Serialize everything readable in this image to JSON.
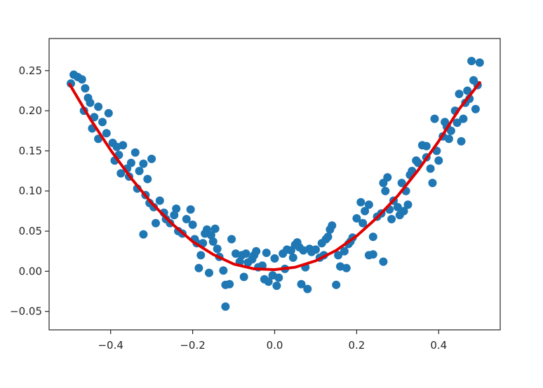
{
  "chart_data": {
    "type": "scatter",
    "title": "",
    "xlabel": "",
    "ylabel": "",
    "xlim": [
      -0.55,
      0.55
    ],
    "ylim": [
      -0.073,
      0.29
    ],
    "grid": false,
    "x_ticks": [
      -0.4,
      -0.2,
      0.0,
      0.2,
      0.4
    ],
    "x_tick_labels": [
      "−0.4",
      "−0.2",
      "0.0",
      "0.2",
      "0.4"
    ],
    "y_ticks": [
      -0.05,
      0.0,
      0.05,
      0.1,
      0.15,
      0.2,
      0.25
    ],
    "y_tick_labels": [
      "−0.05",
      "0.00",
      "0.05",
      "0.10",
      "0.15",
      "0.20",
      "0.25"
    ],
    "series": [
      {
        "type": "scatter",
        "color": "#1f77b4",
        "points": [
          [
            -0.497,
            0.234
          ],
          [
            -0.49,
            0.245
          ],
          [
            -0.48,
            0.242
          ],
          [
            -0.47,
            0.239
          ],
          [
            -0.462,
            0.228
          ],
          [
            -0.455,
            0.216
          ],
          [
            -0.45,
            0.21
          ],
          [
            -0.465,
            0.2
          ],
          [
            -0.44,
            0.192
          ],
          [
            -0.445,
            0.178
          ],
          [
            -0.43,
            0.205
          ],
          [
            -0.42,
            0.186
          ],
          [
            -0.405,
            0.197
          ],
          [
            -0.43,
            0.165
          ],
          [
            -0.41,
            0.172
          ],
          [
            -0.395,
            0.16
          ],
          [
            -0.385,
            0.155
          ],
          [
            -0.39,
            0.138
          ],
          [
            -0.38,
            0.145
          ],
          [
            -0.37,
            0.157
          ],
          [
            -0.375,
            0.122
          ],
          [
            -0.36,
            0.128
          ],
          [
            -0.355,
            0.118
          ],
          [
            -0.35,
            0.135
          ],
          [
            -0.34,
            0.148
          ],
          [
            -0.33,
            0.125
          ],
          [
            -0.335,
            0.103
          ],
          [
            -0.32,
            0.134
          ],
          [
            -0.31,
            0.115
          ],
          [
            -0.3,
            0.14
          ],
          [
            -0.315,
            0.095
          ],
          [
            -0.305,
            0.085
          ],
          [
            -0.295,
            0.08
          ],
          [
            -0.29,
            0.06
          ],
          [
            -0.28,
            0.088
          ],
          [
            -0.32,
            0.046
          ],
          [
            -0.27,
            0.073
          ],
          [
            -0.265,
            0.065
          ],
          [
            -0.255,
            0.06
          ],
          [
            -0.245,
            0.07
          ],
          [
            -0.24,
            0.078
          ],
          [
            -0.235,
            0.05
          ],
          [
            -0.225,
            0.047
          ],
          [
            -0.215,
            0.065
          ],
          [
            -0.205,
            0.077
          ],
          [
            -0.2,
            0.058
          ],
          [
            -0.195,
            0.04
          ],
          [
            -0.19,
            0.035
          ],
          [
            -0.18,
            0.02
          ],
          [
            -0.185,
            0.004
          ],
          [
            -0.17,
            0.047
          ],
          [
            -0.165,
            0.052
          ],
          [
            -0.155,
            0.045
          ],
          [
            -0.15,
            0.037
          ],
          [
            -0.145,
            0.053
          ],
          [
            -0.14,
            0.028
          ],
          [
            -0.135,
            0.018
          ],
          [
            -0.16,
            -0.002
          ],
          [
            -0.125,
            0.001
          ],
          [
            -0.12,
            -0.017
          ],
          [
            -0.11,
            -0.016
          ],
          [
            -0.105,
            0.04
          ],
          [
            -0.095,
            0.022
          ],
          [
            -0.085,
            0.012
          ],
          [
            -0.08,
            0.02
          ],
          [
            -0.075,
            -0.007
          ],
          [
            -0.07,
            0.022
          ],
          [
            -0.065,
            0.011
          ],
          [
            -0.055,
            0.015
          ],
          [
            -0.05,
            0.02
          ],
          [
            -0.045,
            0.025
          ],
          [
            -0.04,
            0.005
          ],
          [
            -0.03,
            0.007
          ],
          [
            -0.025,
            -0.01
          ],
          [
            -0.02,
            0.023
          ],
          [
            -0.015,
            -0.013
          ],
          [
            -0.005,
            -0.005
          ],
          [
            0.0,
            0.016
          ],
          [
            0.005,
            -0.018
          ],
          [
            0.01,
            -0.008
          ],
          [
            0.02,
            0.022
          ],
          [
            0.025,
            0.003
          ],
          [
            0.03,
            0.027
          ],
          [
            0.04,
            0.026
          ],
          [
            0.045,
            0.017
          ],
          [
            0.05,
            0.033
          ],
          [
            0.055,
            0.036
          ],
          [
            0.06,
            0.03
          ],
          [
            0.065,
            -0.016
          ],
          [
            0.07,
            0.026
          ],
          [
            0.075,
            0.005
          ],
          [
            0.08,
            -0.022
          ],
          [
            0.085,
            0.028
          ],
          [
            0.09,
            0.024
          ],
          [
            0.1,
            0.027
          ],
          [
            0.11,
            0.017
          ],
          [
            0.115,
            0.035
          ],
          [
            0.12,
            0.02
          ],
          [
            0.125,
            0.04
          ],
          [
            0.13,
            0.043
          ],
          [
            0.135,
            0.052
          ],
          [
            0.14,
            0.057
          ],
          [
            0.15,
            -0.017
          ],
          [
            0.155,
            0.02
          ],
          [
            0.16,
            0.006
          ],
          [
            0.17,
            0.025
          ],
          [
            0.175,
            0.004
          ],
          [
            0.18,
            0.034
          ],
          [
            0.185,
            0.037
          ],
          [
            0.19,
            0.042
          ],
          [
            0.2,
            0.066
          ],
          [
            0.21,
            0.086
          ],
          [
            0.215,
            0.06
          ],
          [
            0.22,
            0.075
          ],
          [
            0.23,
            0.083
          ],
          [
            0.24,
            0.043
          ],
          [
            0.24,
            0.021
          ],
          [
            0.25,
            0.068
          ],
          [
            0.26,
            0.072
          ],
          [
            0.265,
            0.11
          ],
          [
            0.27,
            0.1
          ],
          [
            0.275,
            0.117
          ],
          [
            0.28,
            0.077
          ],
          [
            0.285,
            0.065
          ],
          [
            0.29,
            0.088
          ],
          [
            0.3,
            0.08
          ],
          [
            0.305,
            0.07
          ],
          [
            0.31,
            0.11
          ],
          [
            0.315,
            0.075
          ],
          [
            0.32,
            0.1
          ],
          [
            0.325,
            0.083
          ],
          [
            0.33,
            0.12
          ],
          [
            0.335,
            0.125
          ],
          [
            0.345,
            0.138
          ],
          [
            0.35,
            0.135
          ],
          [
            0.36,
            0.157
          ],
          [
            0.37,
            0.156
          ],
          [
            0.37,
            0.142
          ],
          [
            0.38,
            0.128
          ],
          [
            0.385,
            0.11
          ],
          [
            0.39,
            0.19
          ],
          [
            0.395,
            0.15
          ],
          [
            0.4,
            0.138
          ],
          [
            0.41,
            0.168
          ],
          [
            0.415,
            0.186
          ],
          [
            0.42,
            0.18
          ],
          [
            0.425,
            0.165
          ],
          [
            0.43,
            0.175
          ],
          [
            0.44,
            0.2
          ],
          [
            0.445,
            0.185
          ],
          [
            0.45,
            0.221
          ],
          [
            0.455,
            0.162
          ],
          [
            0.46,
            0.19
          ],
          [
            0.465,
            0.21
          ],
          [
            0.47,
            0.225
          ],
          [
            0.475,
            0.215
          ],
          [
            0.48,
            0.262
          ],
          [
            0.485,
            0.238
          ],
          [
            0.49,
            0.202
          ],
          [
            0.495,
            0.232
          ],
          [
            0.5,
            0.26
          ],
          [
            -0.12,
            -0.044
          ],
          [
            0.265,
            0.012
          ],
          [
            0.23,
            0.02
          ],
          [
            -0.175,
            0.035
          ]
        ]
      },
      {
        "type": "line",
        "color": "#e00000",
        "x": [
          -0.5,
          -0.45,
          -0.4,
          -0.35,
          -0.3,
          -0.25,
          -0.2,
          -0.15,
          -0.1,
          -0.05,
          0.0,
          0.05,
          0.1,
          0.15,
          0.2,
          0.25,
          0.3,
          0.35,
          0.4,
          0.45,
          0.5
        ],
        "y": [
          0.233,
          0.19,
          0.151,
          0.116,
          0.085,
          0.059,
          0.037,
          0.021,
          0.009,
          0.003,
          0.002,
          0.005,
          0.013,
          0.026,
          0.044,
          0.067,
          0.094,
          0.126,
          0.162,
          0.202,
          0.235
        ]
      }
    ]
  }
}
